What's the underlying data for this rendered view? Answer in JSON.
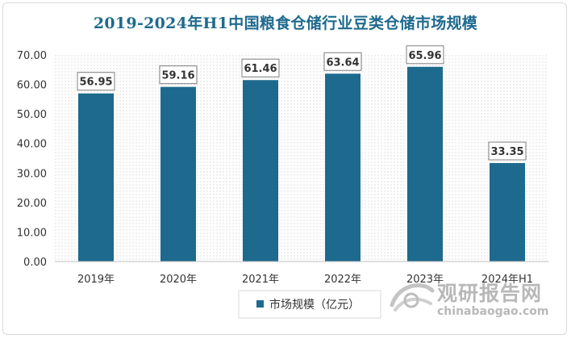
{
  "chart_data": {
    "type": "bar",
    "title": "2019-2024年H1中国粮食仓储行业豆类仓储市场规模",
    "categories": [
      "2019年",
      "2020年",
      "2021年",
      "2022年",
      "2023年",
      "2024年H1"
    ],
    "series": [
      {
        "name": "市场规模（亿元）",
        "values": [
          56.95,
          59.16,
          61.46,
          63.64,
          65.96,
          33.35
        ]
      }
    ],
    "value_labels": [
      "56.95",
      "59.16",
      "61.46",
      "63.64",
      "65.96",
      "33.35"
    ],
    "y_ticks": [
      "0.00",
      "10.00",
      "20.00",
      "30.00",
      "40.00",
      "50.00",
      "60.00",
      "70.00"
    ],
    "ylim": [
      0,
      70
    ],
    "grid": false,
    "legend_position": "bottom",
    "bar_color": "#1d6a8e"
  },
  "watermark": {
    "cn": "观研报告网",
    "en": "chinabaogao.com"
  }
}
